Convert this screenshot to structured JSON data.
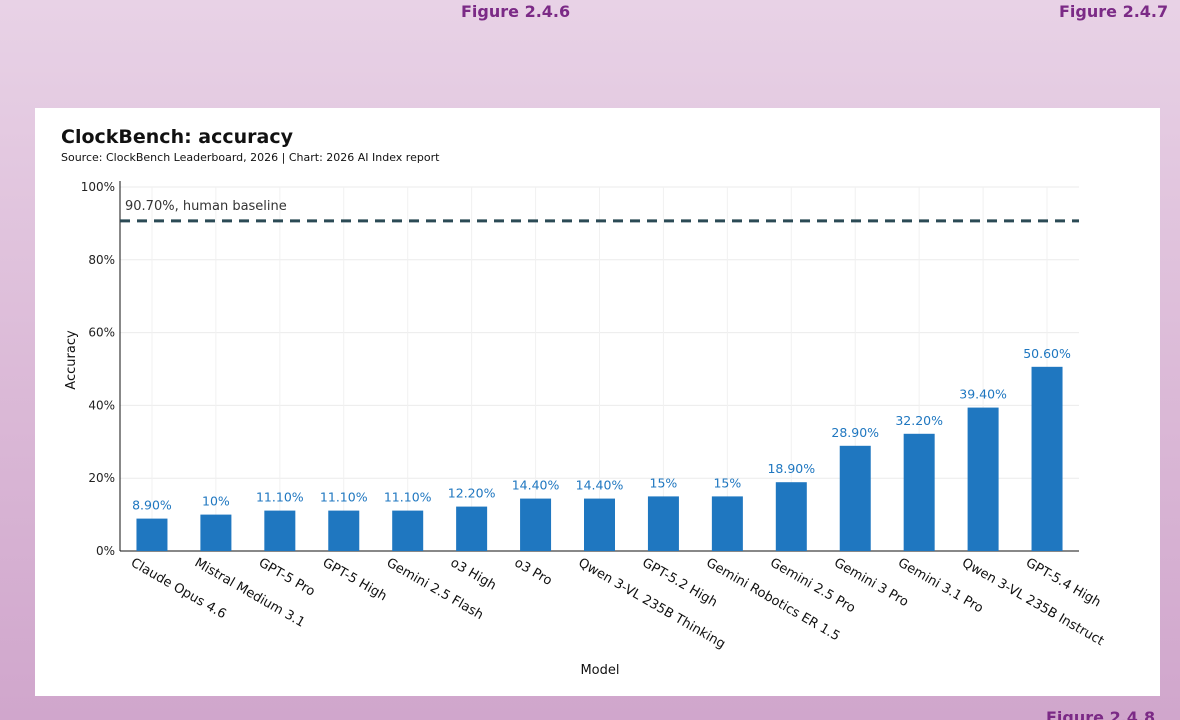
{
  "figure_labels": {
    "left": "Figure 2.4.6",
    "right": "Figure 2.4.7",
    "bottom": "Figure 2.4.8"
  },
  "chart_data": {
    "type": "bar",
    "title": "ClockBench: accuracy",
    "source": "Source: ClockBench Leaderboard, 2026 | Chart: 2026 AI Index report",
    "xlabel": "Model",
    "ylabel": "Accuracy",
    "ylim": [
      0,
      100
    ],
    "yticks": [
      0,
      20,
      40,
      60,
      80,
      100
    ],
    "ytick_labels": [
      "0%",
      "20%",
      "40%",
      "60%",
      "80%",
      "100%"
    ],
    "categories": [
      "Claude Opus 4.6",
      "Mistral Medium 3.1",
      "GPT-5 Pro",
      "GPT-5 High",
      "Gemini 2.5 Flash",
      "o3 High",
      "o3 Pro",
      "Qwen 3-VL 235B Thinking",
      "GPT-5.2 High",
      "Gemini Robotics ER 1.5",
      "Gemini 2.5 Pro",
      "Gemini 3 Pro",
      "Gemini 3.1 Pro",
      "Qwen 3-VL 235B Instruct",
      "GPT-5.4 High"
    ],
    "values": [
      8.9,
      10,
      11.1,
      11.1,
      11.1,
      12.2,
      14.4,
      14.4,
      15,
      15,
      18.9,
      28.9,
      32.2,
      39.4,
      50.6
    ],
    "value_labels": [
      "8.90%",
      "10%",
      "11.10%",
      "11.10%",
      "11.10%",
      "12.20%",
      "14.40%",
      "14.40%",
      "15%",
      "15%",
      "18.90%",
      "28.90%",
      "32.20%",
      "39.40%",
      "50.60%"
    ],
    "baseline": {
      "value": 90.7,
      "label": "90.70%, human baseline",
      "color": "#2b4a55"
    },
    "bar_color": "#1f77c0",
    "label_color": "#1f77c0",
    "grid": true
  }
}
